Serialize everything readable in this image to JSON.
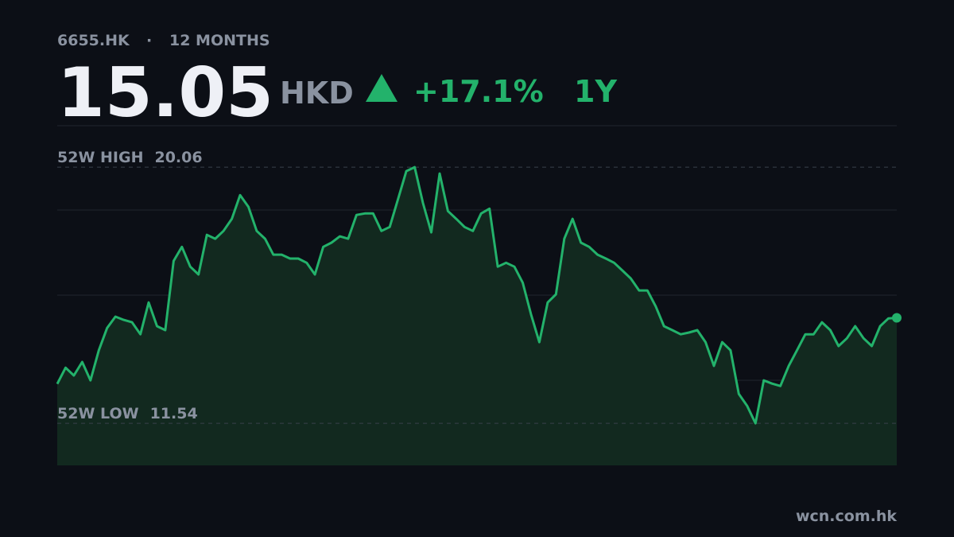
{
  "header": {
    "ticker": "6655.HK",
    "period": "12 MONTHS",
    "price": 15.05,
    "currency": "HKD",
    "change": "+17.1%",
    "range": "1Y"
  },
  "chart_data": {
    "type": "line",
    "color": "#23b26b",
    "ylim": [
      10.14,
      21.44
    ],
    "values": [
      12.85,
      13.39,
      13.13,
      13.58,
      12.97,
      13.97,
      14.71,
      15.09,
      14.98,
      14.9,
      14.5,
      15.56,
      14.77,
      14.64,
      16.94,
      17.41,
      16.75,
      16.49,
      17.81,
      17.68,
      17.94,
      18.34,
      19.13,
      18.74,
      17.94,
      17.68,
      17.15,
      17.15,
      17.02,
      17.02,
      16.88,
      16.49,
      17.41,
      17.55,
      17.76,
      17.68,
      18.47,
      18.52,
      18.52,
      17.94,
      18.07,
      19.0,
      19.93,
      20.06,
      18.87,
      17.89,
      19.85,
      18.6,
      18.34,
      18.07,
      17.94,
      18.52,
      18.68,
      16.75,
      16.88,
      16.75,
      16.22,
      15.16,
      14.24,
      15.56,
      15.83,
      17.68,
      18.34,
      17.55,
      17.41,
      17.15,
      17.02,
      16.88,
      16.62,
      16.36,
      15.96,
      15.96,
      15.43,
      14.77,
      14.64,
      14.5,
      14.56,
      14.64,
      14.24,
      13.45,
      14.24,
      13.97,
      12.52,
      12.12,
      11.54,
      12.97,
      12.86,
      12.78,
      13.45,
      13.97,
      14.5,
      14.5,
      14.9,
      14.64,
      14.11,
      14.37,
      14.77,
      14.37,
      14.11,
      14.77,
      15.03,
      15.05
    ],
    "high": {
      "label": "52W HIGH",
      "value": 20.06
    },
    "low": {
      "label": "52W LOW",
      "value": 11.54
    }
  },
  "footer": "wcn.com.hk"
}
